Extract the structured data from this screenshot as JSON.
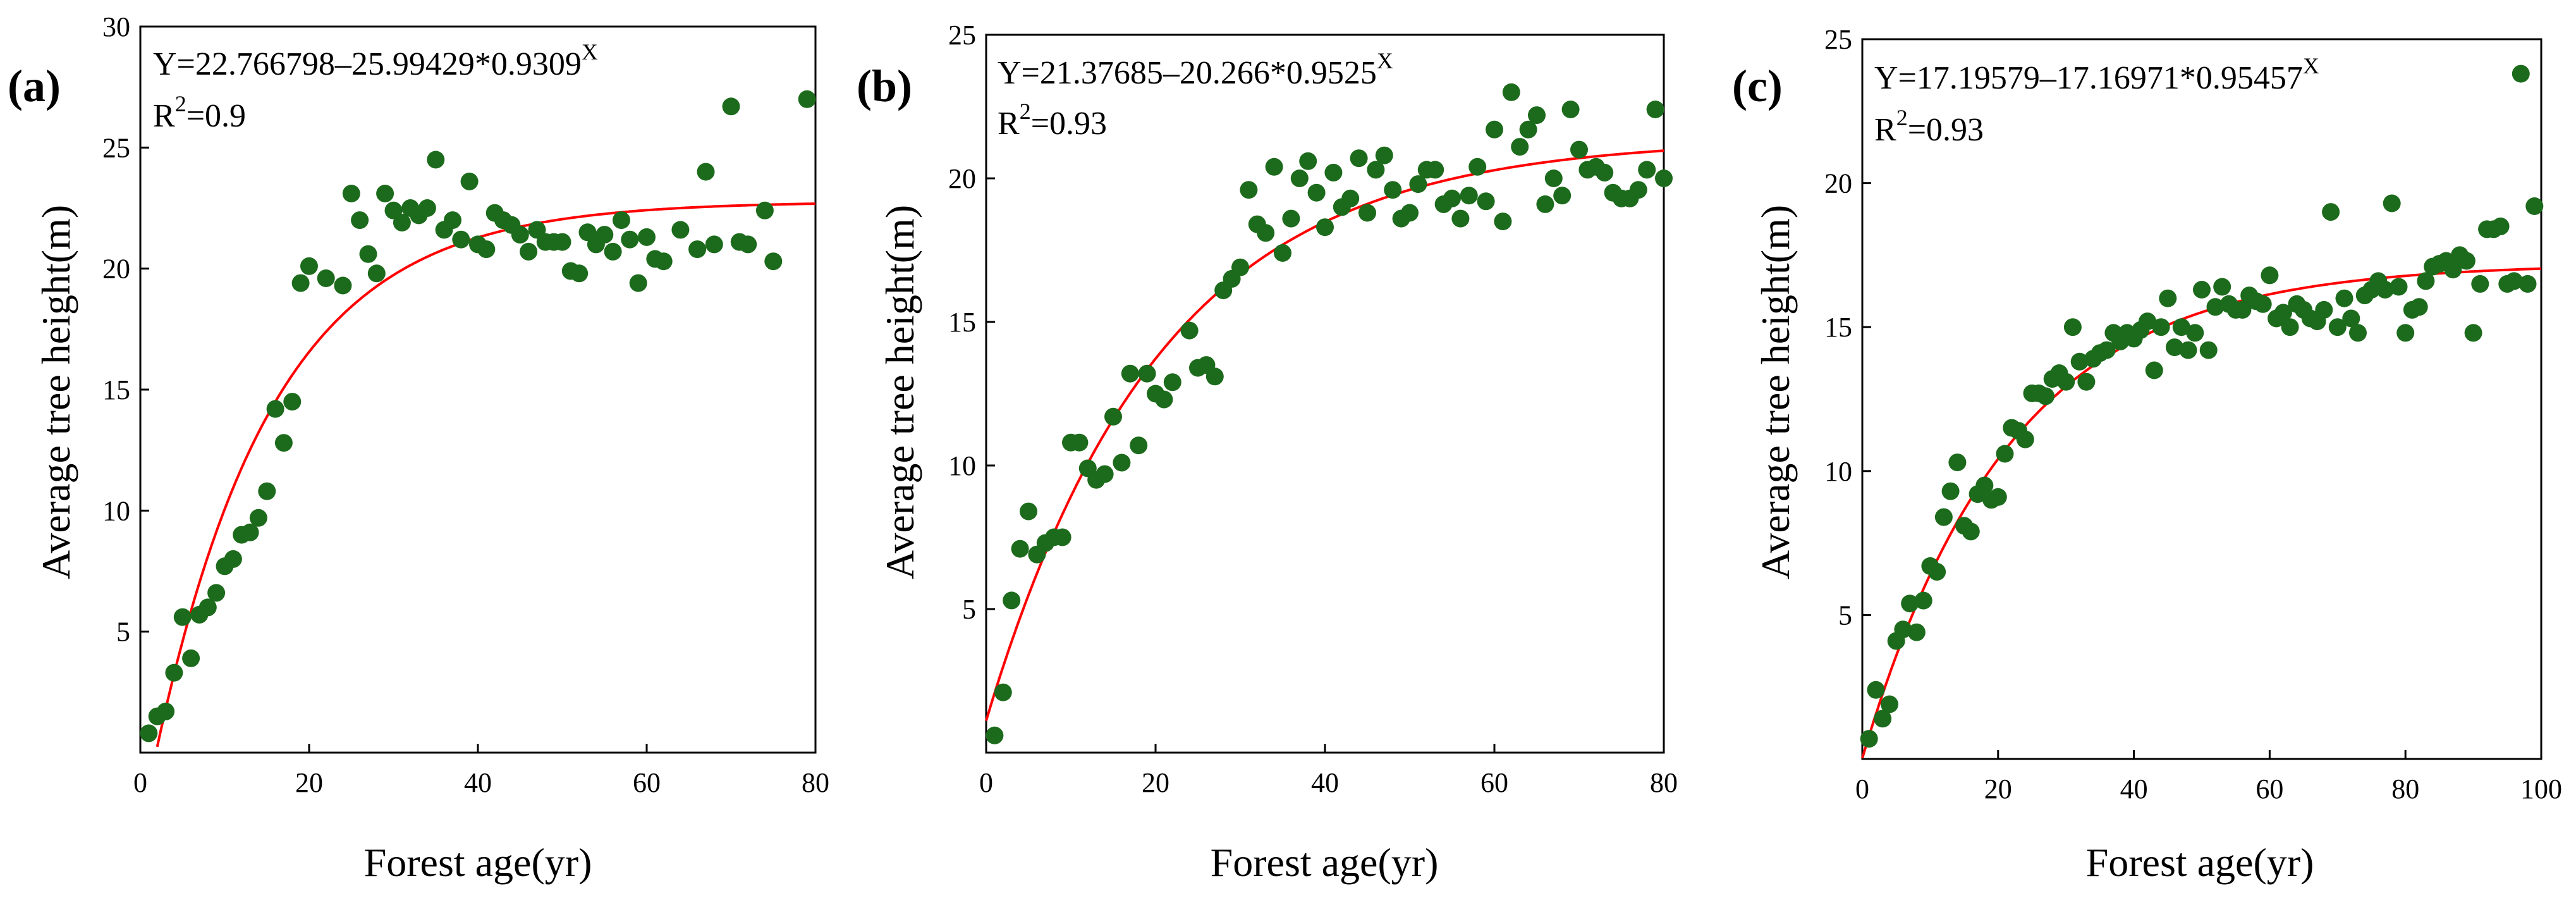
{
  "chart_data": [
    {
      "type": "scatter",
      "panel_label": "(a)",
      "equation_main": "Y=22.766798–25.99429*0.9309",
      "equation_exp": "X",
      "r2_prefix": "R",
      "r2_exp": "2",
      "r2_value": "=0.9",
      "xlabel": "Forest age(yr)",
      "ylabel": "Average tree height(m)",
      "xlim": [
        0,
        80
      ],
      "ylim": [
        0,
        30
      ],
      "xticks": [
        0,
        20,
        40,
        60,
        80
      ],
      "yticks": [
        5,
        10,
        15,
        20,
        25,
        30
      ],
      "fit": {
        "a": 22.766798,
        "b": 25.99429,
        "c": 0.9309
      },
      "x": [
        1,
        2,
        3,
        4,
        5,
        6,
        7,
        8,
        9,
        10,
        11,
        12,
        13,
        14,
        15,
        16,
        17,
        18,
        19,
        20,
        22,
        24,
        25,
        26,
        27,
        28,
        29,
        30,
        31,
        32,
        33,
        34,
        35,
        36,
        37,
        38,
        39,
        40,
        41,
        42,
        43,
        44,
        45,
        46,
        47,
        48,
        49,
        50,
        51,
        52,
        53,
        54,
        55,
        56,
        57,
        58,
        59,
        60,
        61,
        62,
        64,
        66,
        67,
        68,
        70,
        71,
        72,
        74,
        75,
        79
      ],
      "y": [
        0.8,
        1.5,
        1.7,
        3.3,
        5.6,
        3.9,
        5.7,
        6.0,
        6.6,
        7.7,
        8.0,
        9.0,
        9.1,
        9.7,
        10.8,
        14.2,
        12.8,
        14.5,
        19.4,
        20.1,
        19.6,
        19.3,
        23.1,
        22.0,
        20.6,
        19.8,
        23.1,
        22.4,
        21.9,
        22.5,
        22.2,
        22.5,
        24.5,
        21.6,
        22.0,
        21.2,
        23.6,
        21.0,
        20.8,
        22.3,
        22.0,
        21.8,
        21.4,
        20.7,
        21.6,
        21.1,
        21.1,
        21.1,
        19.9,
        19.8,
        21.5,
        21.0,
        21.4,
        20.7,
        22.0,
        21.2,
        19.4,
        21.3,
        20.4,
        20.3,
        21.6,
        20.8,
        24.0,
        21.0,
        26.7,
        21.1,
        21.0,
        22.4,
        20.3,
        27.0
      ]
    },
    {
      "type": "scatter",
      "panel_label": "(b)",
      "equation_main": "Y=21.37685–20.266*0.9525",
      "equation_exp": "X",
      "r2_prefix": "R",
      "r2_exp": "2",
      "r2_value": "=0.93",
      "xlabel": "Forest age(yr)",
      "ylabel": "Average tree height(m)",
      "xlim": [
        0,
        80
      ],
      "ylim": [
        0,
        25
      ],
      "xticks": [
        0,
        20,
        40,
        60,
        80
      ],
      "yticks": [
        5,
        10,
        15,
        20,
        25
      ],
      "fit": {
        "a": 21.37685,
        "b": 20.266,
        "c": 0.9525
      },
      "x": [
        1,
        2,
        3,
        4,
        5,
        6,
        7,
        8,
        9,
        10,
        11,
        12,
        13,
        14,
        15,
        16,
        17,
        18,
        19,
        20,
        21,
        22,
        24,
        25,
        26,
        27,
        28,
        29,
        30,
        31,
        32,
        33,
        34,
        35,
        36,
        37,
        38,
        39,
        40,
        41,
        42,
        43,
        44,
        45,
        46,
        47,
        48,
        49,
        50,
        51,
        52,
        53,
        54,
        55,
        56,
        57,
        58,
        59,
        60,
        61,
        62,
        63,
        64,
        65,
        66,
        67,
        68,
        69,
        70,
        71,
        72,
        73,
        74,
        75,
        76,
        77,
        78,
        79,
        80
      ],
      "y": [
        0.6,
        2.1,
        5.3,
        7.1,
        8.4,
        6.9,
        7.3,
        7.5,
        7.5,
        10.8,
        10.8,
        9.9,
        9.5,
        9.7,
        11.7,
        10.1,
        13.2,
        10.7,
        13.2,
        12.5,
        12.3,
        12.9,
        14.7,
        13.4,
        13.5,
        13.1,
        16.1,
        16.5,
        16.9,
        19.6,
        18.4,
        18.1,
        20.4,
        17.4,
        18.6,
        20.0,
        20.6,
        19.5,
        18.3,
        20.2,
        19.0,
        19.3,
        20.7,
        18.8,
        20.3,
        20.8,
        19.6,
        18.6,
        18.8,
        19.8,
        20.3,
        20.3,
        19.1,
        19.3,
        18.6,
        19.4,
        20.4,
        19.2,
        21.7,
        18.5,
        23.0,
        21.1,
        21.7,
        22.2,
        19.1,
        20.0,
        19.4,
        22.4,
        21.0,
        20.3,
        20.4,
        20.2,
        19.5,
        19.3,
        19.3,
        19.6,
        20.3,
        22.4,
        20.0
      ]
    },
    {
      "type": "scatter",
      "panel_label": "(c)",
      "equation_main": "Y=17.19579–17.16971*0.95457",
      "equation_exp": "X",
      "r2_prefix": "R",
      "r2_exp": "2",
      "r2_value": "=0.93",
      "xlabel": "Forest age(yr)",
      "ylabel": "Average tree height(m)",
      "xlim": [
        0,
        100
      ],
      "ylim": [
        0,
        25
      ],
      "xticks": [
        0,
        20,
        40,
        60,
        80,
        100
      ],
      "yticks": [
        5,
        10,
        15,
        20,
        25
      ],
      "fit": {
        "a": 17.19579,
        "b": 17.16971,
        "c": 0.95457
      },
      "x": [
        1,
        2,
        3,
        4,
        5,
        6,
        7,
        8,
        9,
        10,
        11,
        12,
        13,
        14,
        15,
        16,
        17,
        18,
        19,
        20,
        21,
        22,
        23,
        24,
        25,
        26,
        27,
        28,
        29,
        30,
        31,
        32,
        33,
        34,
        35,
        36,
        37,
        38,
        39,
        40,
        41,
        42,
        43,
        44,
        45,
        46,
        47,
        48,
        49,
        50,
        51,
        52,
        53,
        54,
        55,
        56,
        57,
        58,
        59,
        60,
        61,
        62,
        63,
        64,
        65,
        66,
        67,
        68,
        69,
        70,
        71,
        72,
        73,
        74,
        75,
        76,
        77,
        78,
        79,
        80,
        81,
        82,
        83,
        84,
        85,
        86,
        87,
        88,
        89,
        90,
        91,
        92,
        93,
        94,
        95,
        96,
        97,
        98,
        99
      ],
      "y": [
        0.7,
        2.4,
        1.4,
        1.9,
        4.1,
        4.5,
        5.4,
        4.4,
        5.5,
        6.7,
        6.5,
        8.4,
        9.3,
        10.3,
        8.1,
        7.9,
        9.2,
        9.5,
        9.0,
        9.1,
        10.6,
        11.5,
        11.4,
        11.1,
        12.7,
        12.7,
        12.6,
        13.2,
        13.4,
        13.1,
        15.0,
        13.8,
        13.1,
        13.9,
        14.1,
        14.2,
        14.8,
        14.5,
        14.8,
        14.6,
        14.9,
        15.2,
        13.5,
        15.0,
        16.0,
        14.3,
        15.0,
        14.2,
        14.8,
        16.3,
        14.2,
        15.7,
        16.4,
        15.8,
        15.6,
        15.6,
        16.1,
        15.9,
        15.8,
        16.8,
        15.3,
        15.5,
        15.0,
        15.8,
        15.6,
        15.3,
        15.2,
        15.6,
        19.0,
        15.0,
        16.0,
        15.3,
        14.8,
        16.1,
        16.3,
        16.6,
        16.3,
        19.3,
        16.4,
        14.8,
        15.6,
        15.7,
        16.6,
        17.1,
        17.2,
        17.3,
        17.0,
        17.5,
        17.3,
        14.8,
        16.5,
        18.4,
        18.4,
        18.5,
        16.5,
        16.6,
        23.8,
        16.5,
        19.2
      ]
    }
  ]
}
